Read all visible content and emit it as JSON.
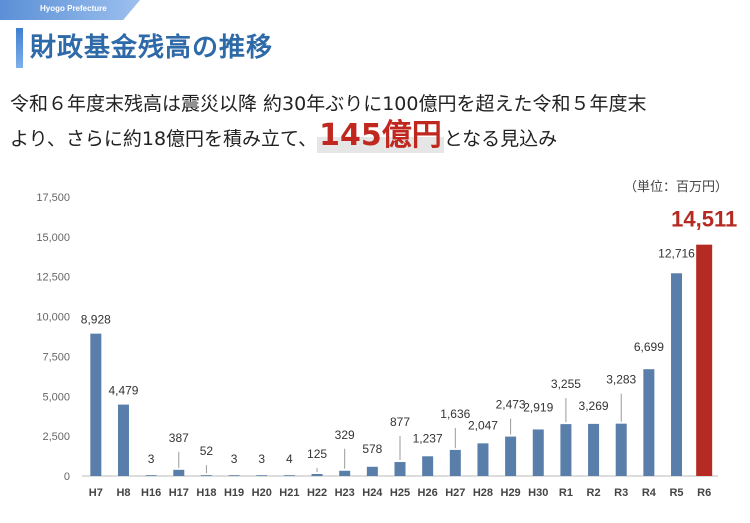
{
  "header": {
    "prefecture": "Hyogo Prefecture",
    "title": "財政基金残高の推移"
  },
  "description": {
    "line1": "令和６年度末残高は震災以降 約30年ぶりに100億円を超えた令和５年度末",
    "line2_pre": "より、さらに約18億円を積み立て、",
    "highlight": "145億円",
    "line2_post": "となる見込み"
  },
  "unit_note": "（単位：百万円）",
  "colors": {
    "bar": "#5a7eaa",
    "highlight_bar": "#b52a22",
    "highlight_text": "#b52a22"
  },
  "chart_data": {
    "type": "bar",
    "categories": [
      "H7",
      "H8",
      "H16",
      "H17",
      "H18",
      "H19",
      "H20",
      "H21",
      "H22",
      "H23",
      "H24",
      "H25",
      "H26",
      "H27",
      "H28",
      "H29",
      "H30",
      "R1",
      "R2",
      "R3",
      "R4",
      "R5",
      "R6"
    ],
    "values": [
      8928,
      4479,
      3,
      387,
      52,
      3,
      3,
      4,
      125,
      329,
      578,
      877,
      1237,
      1636,
      2047,
      2473,
      2919,
      3255,
      3269,
      3283,
      6699,
      12716,
      14511
    ],
    "labels": [
      "8,928",
      "4,479",
      "3",
      "387",
      "52",
      "3",
      "3",
      "4",
      "125",
      "329",
      "578",
      "877",
      "1,237",
      "1,636",
      "2,047",
      "2,473",
      "2,919",
      "3,255",
      "3,269",
      "3,283",
      "6,699",
      "12,716",
      "14,511"
    ],
    "highlight_index": 22,
    "ylim": [
      0,
      17500
    ],
    "yticks": [
      0,
      2500,
      5000,
      7500,
      10000,
      12500,
      15000,
      17500
    ],
    "ytick_labels": [
      "0",
      "2,500",
      "5,000",
      "7,500",
      "10,000",
      "12,500",
      "15,000",
      "17,500"
    ],
    "xlabel": "",
    "ylabel": ""
  }
}
